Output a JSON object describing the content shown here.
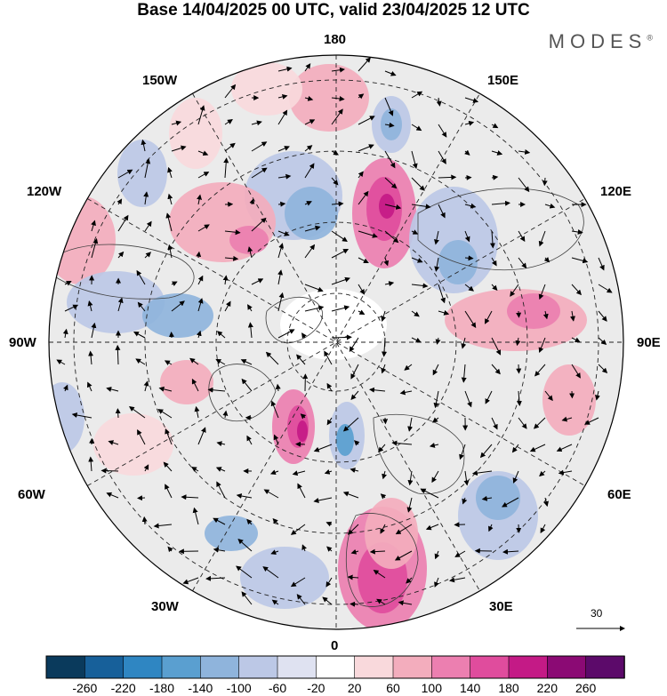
{
  "title": "Base 14/04/2025 00 UTC, valid 23/04/2025 12 UTC",
  "brand": "MODES",
  "brand_mark": "®",
  "longitude_labels": {
    "top": "180",
    "top_left": "150W",
    "top_right": "150E",
    "upper_left": "120W",
    "upper_right": "120E",
    "left": "90W",
    "right": "90E",
    "lower_left": "60W",
    "lower_right": "60E",
    "bottom_left": "30W",
    "bottom_right": "30E",
    "bottom": "0"
  },
  "vector_scale": "30",
  "colorbar": {
    "labels": [
      "-260",
      "-220",
      "-180",
      "-140",
      "-100",
      "-60",
      "-20",
      "20",
      "60",
      "100",
      "140",
      "180",
      "220",
      "260"
    ],
    "colors": [
      "#0a3a5c",
      "#17609a",
      "#2f86c2",
      "#5a9fd0",
      "#8fb4dc",
      "#bcc8e6",
      "#dfe2f1",
      "#ffffff",
      "#f9d9dc",
      "#f3adbd",
      "#ec7fb0",
      "#e04c9d",
      "#c41a86",
      "#8b0a74",
      "#5c0a6a"
    ]
  },
  "colors": {
    "positive": "#f2c4cc",
    "negative": "#b8c4e2",
    "neutral": "#ebebeb",
    "land_outline": "#404040"
  }
}
